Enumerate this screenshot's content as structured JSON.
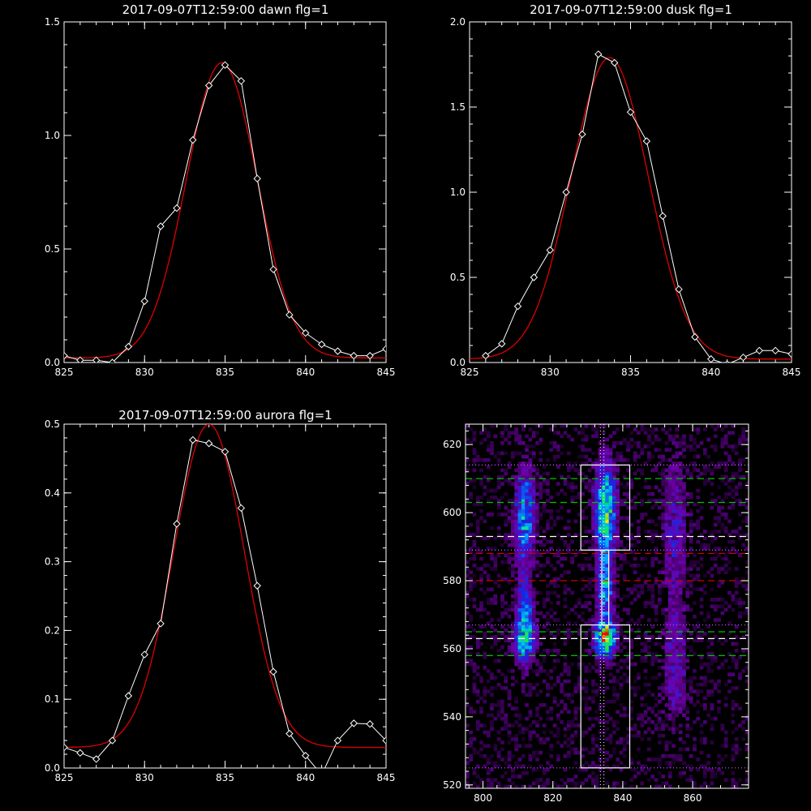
{
  "colors": {
    "background": "#000000",
    "axes": "#ffffff",
    "data_line": "#ffffff",
    "fit_line": "#e00000",
    "box": "#ffffff",
    "dashed_green": "#00c000",
    "dashed_white": "#ffffff",
    "dashed_red": "#d00000",
    "dotted": "#c060ff"
  },
  "chart_data": [
    {
      "type": "line",
      "title": "2017-09-07T12:59:00 dawn flg=1",
      "xlim": [
        825,
        845
      ],
      "ylim": [
        0,
        1.5
      ],
      "xticks": [
        825,
        830,
        835,
        840,
        845
      ],
      "yticks": [
        0.0,
        0.5,
        1.0,
        1.5
      ],
      "xtick_labels": [
        "825",
        "830",
        "835",
        "840",
        "845"
      ],
      "ytick_labels": [
        "0.0",
        "0.5",
        "1.0",
        "1.5"
      ],
      "grid": false,
      "series": [
        {
          "role": "data",
          "color": "#ffffff",
          "marker": "diamond",
          "x": [
            825,
            826,
            827,
            828,
            829,
            830,
            831,
            832,
            833,
            834,
            835,
            836,
            837,
            838,
            839,
            840,
            841,
            842,
            843,
            844,
            845
          ],
          "y": [
            0.03,
            0.01,
            0.01,
            0.0,
            0.07,
            0.27,
            0.6,
            0.68,
            0.98,
            1.22,
            1.31,
            1.24,
            0.81,
            0.41,
            0.21,
            0.13,
            0.08,
            0.05,
            0.03,
            0.03,
            0.06
          ]
        },
        {
          "role": "fit",
          "color": "#e00000",
          "gaussian": {
            "amp": 1.3,
            "center": 834.8,
            "sigma": 2.2,
            "offset": 0.02
          }
        }
      ]
    },
    {
      "type": "line",
      "title": "2017-09-07T12:59:00 dusk flg=1",
      "xlim": [
        825,
        845
      ],
      "ylim": [
        0,
        2.0
      ],
      "xticks": [
        825,
        830,
        835,
        840,
        845
      ],
      "yticks": [
        0.0,
        0.5,
        1.0,
        1.5,
        2.0
      ],
      "xtick_labels": [
        "825",
        "830",
        "835",
        "840",
        "845"
      ],
      "ytick_labels": [
        "0.0",
        "0.5",
        "1.0",
        "1.5",
        "2.0"
      ],
      "grid": false,
      "series": [
        {
          "role": "data",
          "color": "#ffffff",
          "marker": "diamond",
          "x": [
            826,
            827,
            828,
            829,
            830,
            831,
            832,
            833,
            834,
            835,
            836,
            837,
            838,
            839,
            840,
            841,
            842,
            843,
            844,
            845
          ],
          "y": [
            0.04,
            0.11,
            0.33,
            0.5,
            0.66,
            1.0,
            1.34,
            1.81,
            1.76,
            1.47,
            1.3,
            0.86,
            0.43,
            0.15,
            0.02,
            -0.01,
            0.03,
            0.07,
            0.07,
            0.05
          ]
        },
        {
          "role": "fit",
          "color": "#e00000",
          "gaussian": {
            "amp": 1.77,
            "center": 833.7,
            "sigma": 2.4,
            "offset": 0.02
          }
        }
      ]
    },
    {
      "type": "line",
      "title": "2017-09-07T12:59:00 aurora flg=1",
      "xlim": [
        825,
        845
      ],
      "ylim": [
        0,
        0.5
      ],
      "xticks": [
        825,
        830,
        835,
        840,
        845
      ],
      "yticks": [
        0.0,
        0.1,
        0.2,
        0.3,
        0.4,
        0.5
      ],
      "xtick_labels": [
        "825",
        "830",
        "835",
        "840",
        "845"
      ],
      "ytick_labels": [
        "0.0",
        "0.1",
        "0.2",
        "0.3",
        "0.4",
        "0.5"
      ],
      "grid": false,
      "series": [
        {
          "role": "data",
          "color": "#ffffff",
          "marker": "diamond",
          "x": [
            825,
            826,
            827,
            828,
            829,
            830,
            831,
            832,
            833,
            834,
            835,
            836,
            837,
            838,
            839,
            840,
            841,
            842,
            843,
            844,
            845
          ],
          "y": [
            0.03,
            0.022,
            0.013,
            0.04,
            0.105,
            0.165,
            0.21,
            0.355,
            0.477,
            0.472,
            0.46,
            0.378,
            0.265,
            0.14,
            0.05,
            0.018,
            -0.01,
            0.04,
            0.065,
            0.064,
            0.04
          ]
        },
        {
          "role": "fit",
          "color": "#e00000",
          "gaussian": {
            "amp": 0.47,
            "center": 834.0,
            "sigma": 2.2,
            "offset": 0.03
          }
        }
      ]
    },
    {
      "type": "heatmap",
      "title": "",
      "xlim": [
        795,
        876
      ],
      "ylim": [
        519,
        626
      ],
      "xticks": [
        800,
        820,
        840,
        860
      ],
      "yticks": [
        520,
        540,
        560,
        580,
        600,
        620
      ],
      "xtick_labels": [
        "800",
        "820",
        "840",
        "860"
      ],
      "ytick_labels": [
        "520",
        "540",
        "560",
        "580",
        "600",
        "620"
      ],
      "grid": false,
      "colormap": "rainbow",
      "cell": {
        "dx": 1,
        "dy": 1
      },
      "blobs": [
        {
          "x": 812,
          "y": 599,
          "sx": 2.0,
          "sy": 9,
          "amp": 0.55
        },
        {
          "x": 812,
          "y": 563,
          "sx": 2.0,
          "sy": 5,
          "amp": 0.65
        },
        {
          "x": 812,
          "y": 575,
          "sx": 1.5,
          "sy": 6,
          "amp": 0.35
        },
        {
          "x": 835,
          "y": 600,
          "sx": 2.0,
          "sy": 10,
          "amp": 0.75
        },
        {
          "x": 835,
          "y": 563,
          "sx": 2.0,
          "sy": 3.5,
          "amp": 1.0
        },
        {
          "x": 835,
          "y": 577,
          "sx": 1.5,
          "sy": 6,
          "amp": 0.5
        },
        {
          "x": 855,
          "y": 595,
          "sx": 2.5,
          "sy": 15,
          "amp": 0.25
        },
        {
          "x": 855,
          "y": 555,
          "sx": 2.5,
          "sy": 12,
          "amp": 0.22
        }
      ],
      "background_noise": 0.16,
      "boxes": [
        {
          "x0": 828,
          "x1": 842,
          "y0": 589,
          "y1": 614
        },
        {
          "x0": 828,
          "x1": 842,
          "y0": 525,
          "y1": 567
        },
        {
          "x0": 834,
          "x1": 836,
          "y0": 567,
          "y1": 589
        }
      ],
      "vertical_dotted": [
        833.6,
        834.6
      ],
      "horizontal_lines": [
        {
          "y": 614,
          "style": "dotted",
          "color": "#c060ff"
        },
        {
          "y": 610,
          "style": "dashed",
          "color": "#00c000"
        },
        {
          "y": 603,
          "style": "dashed",
          "color": "#00c000"
        },
        {
          "y": 593,
          "style": "dashed",
          "color": "#ffffff"
        },
        {
          "y": 589,
          "style": "dotted",
          "color": "#c060ff"
        },
        {
          "y": 588,
          "style": "dashed",
          "color": "#d00000"
        },
        {
          "y": 580,
          "style": "dashed",
          "color": "#d00000"
        },
        {
          "y": 567,
          "style": "dotted",
          "color": "#c060ff"
        },
        {
          "y": 565,
          "style": "dashed",
          "color": "#00c000"
        },
        {
          "y": 563,
          "style": "dashed",
          "color": "#ffffff"
        },
        {
          "y": 558,
          "style": "dashed",
          "color": "#00c000"
        },
        {
          "y": 525,
          "style": "dotted",
          "color": "#c060ff"
        }
      ]
    }
  ]
}
